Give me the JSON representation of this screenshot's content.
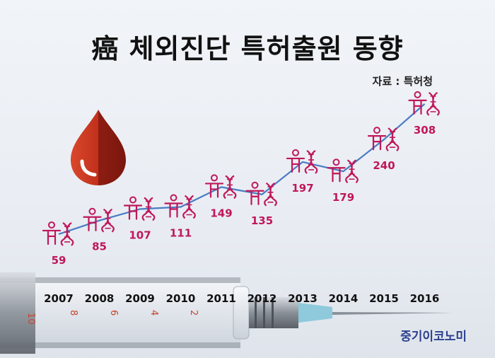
{
  "title": "癌 체외진단 특허출원 동향",
  "source": "자료 : 특허청",
  "brand": "중기이코노미",
  "colors": {
    "line": "#4a7cc4",
    "value_label": "#c0175a",
    "icon": "#c0175a",
    "year_label": "#111111",
    "blood_drop": "#c1301c"
  },
  "chart_data": {
    "type": "line",
    "title": "癌 체외진단 특허출원 동향",
    "xlabel": "",
    "ylabel": "",
    "x": [
      "2007",
      "2008",
      "2009",
      "2010",
      "2011",
      "2012",
      "2013",
      "2014",
      "2015",
      "2016"
    ],
    "series": [
      {
        "values": [
          59,
          85,
          107,
          111,
          149,
          135,
          197,
          179,
          240,
          308
        ]
      }
    ],
    "ylim": [
      40,
      320
    ],
    "grid": false,
    "legend": "none"
  }
}
